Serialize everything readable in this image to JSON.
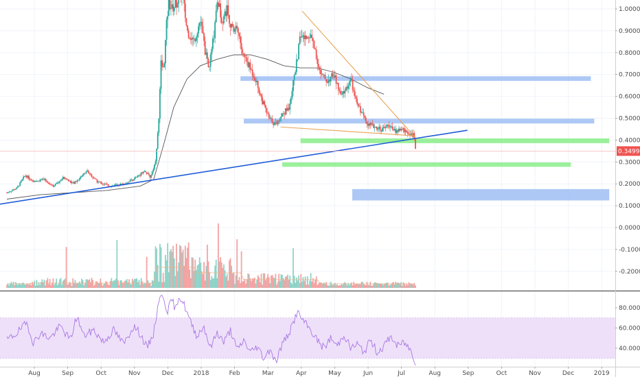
{
  "chart_data": {
    "type": "candlestick",
    "instrument_note": "",
    "price_axis": {
      "ticks": [
        "1.00000",
        "0.90000",
        "0.80000",
        "0.70000",
        "0.60000",
        "0.50000",
        "0.40000",
        "0.30000",
        "0.20000",
        "0.10000",
        "0.00000",
        "-0.10000",
        "-0.20000"
      ],
      "range": [
        -0.27,
        1.04
      ],
      "last_price": "0.34991",
      "last_price_color": "#ef5350"
    },
    "rsi_axis": {
      "ticks": [
        "80.0000",
        "60.0000",
        "40.0000"
      ],
      "range": [
        22,
        97
      ],
      "band": [
        30,
        70
      ],
      "line_color": "#a678e0",
      "band_color": "#efe0fa"
    },
    "time_axis": {
      "labels": [
        {
          "t": 0,
          "text": "Aug"
        },
        {
          "t": 1,
          "text": "Sep"
        },
        {
          "t": 2,
          "text": "Oct"
        },
        {
          "t": 3,
          "text": "Nov"
        },
        {
          "t": 4,
          "text": "Dec"
        },
        {
          "t": 5,
          "text": "2018"
        },
        {
          "t": 6,
          "text": "Feb"
        },
        {
          "t": 7,
          "text": "Mar"
        },
        {
          "t": 8,
          "text": "Apr"
        },
        {
          "t": 9,
          "text": "May"
        },
        {
          "t": 10,
          "text": "Jun"
        },
        {
          "t": 11,
          "text": "Jul"
        },
        {
          "t": 12,
          "text": "Aug"
        },
        {
          "t": 13,
          "text": "Sep"
        },
        {
          "t": 14,
          "text": "Oct"
        },
        {
          "t": 15,
          "text": "Nov"
        },
        {
          "t": 16,
          "text": "Dec"
        },
        {
          "t": 17,
          "text": "2019"
        }
      ]
    },
    "colors": {
      "up": "#26a69a",
      "down": "#ef5350",
      "volume_up": "#8fd3c8",
      "volume_down": "#f4a3a3",
      "ma": "#555555",
      "trend": "#1e5bd7",
      "wedge": "#e8a253",
      "support": "#90ee90",
      "resistance": "#a4c2f4"
    },
    "price_path": [
      [
        0.0,
        0.16
      ],
      [
        0.3,
        0.18
      ],
      [
        0.55,
        0.24
      ],
      [
        0.8,
        0.21
      ],
      [
        1.1,
        0.22
      ],
      [
        1.4,
        0.19
      ],
      [
        1.7,
        0.23
      ],
      [
        2.0,
        0.2
      ],
      [
        2.4,
        0.26
      ],
      [
        2.7,
        0.21
      ],
      [
        3.1,
        0.19
      ],
      [
        3.5,
        0.2
      ],
      [
        3.9,
        0.23
      ],
      [
        4.1,
        0.26
      ],
      [
        4.3,
        0.23
      ],
      [
        4.45,
        0.3
      ],
      [
        4.55,
        0.48
      ],
      [
        4.62,
        0.75
      ],
      [
        4.7,
        0.72
      ],
      [
        4.78,
        0.92
      ],
      [
        4.85,
        1.03
      ],
      [
        4.95,
        1.0
      ],
      [
        5.1,
        1.03
      ],
      [
        5.25,
        1.08
      ],
      [
        5.4,
        0.9
      ],
      [
        5.6,
        0.85
      ],
      [
        5.8,
        0.95
      ],
      [
        5.95,
        0.8
      ],
      [
        6.05,
        0.72
      ],
      [
        6.2,
        0.88
      ],
      [
        6.3,
        1.05
      ],
      [
        6.45,
        0.95
      ],
      [
        6.6,
        1.0
      ],
      [
        6.75,
        0.9
      ],
      [
        6.9,
        0.92
      ],
      [
        7.05,
        0.8
      ],
      [
        7.25,
        0.74
      ],
      [
        7.45,
        0.68
      ],
      [
        7.65,
        0.58
      ],
      [
        7.85,
        0.5
      ],
      [
        8.05,
        0.47
      ],
      [
        8.25,
        0.52
      ],
      [
        8.45,
        0.55
      ],
      [
        8.65,
        0.72
      ],
      [
        8.8,
        0.88
      ],
      [
        8.95,
        0.86
      ],
      [
        9.1,
        0.89
      ],
      [
        9.25,
        0.8
      ],
      [
        9.4,
        0.7
      ],
      [
        9.6,
        0.67
      ],
      [
        9.8,
        0.7
      ],
      [
        10.0,
        0.6
      ],
      [
        10.15,
        0.63
      ],
      [
        10.3,
        0.68
      ],
      [
        10.45,
        0.58
      ],
      [
        10.65,
        0.52
      ],
      [
        10.85,
        0.47
      ],
      [
        11.05,
        0.46
      ],
      [
        11.25,
        0.45
      ],
      [
        11.45,
        0.47
      ],
      [
        11.6,
        0.44
      ],
      [
        11.8,
        0.45
      ],
      [
        11.95,
        0.44
      ],
      [
        12.1,
        0.43
      ],
      [
        12.2,
        0.42
      ],
      [
        12.25,
        0.35
      ]
    ],
    "ma_path": [
      [
        0.0,
        0.13
      ],
      [
        1.0,
        0.15
      ],
      [
        2.0,
        0.16
      ],
      [
        3.0,
        0.17
      ],
      [
        4.0,
        0.19
      ],
      [
        4.4,
        0.22
      ],
      [
        4.7,
        0.38
      ],
      [
        5.0,
        0.55
      ],
      [
        5.4,
        0.68
      ],
      [
        5.8,
        0.74
      ],
      [
        6.3,
        0.77
      ],
      [
        6.8,
        0.79
      ],
      [
        7.3,
        0.79
      ],
      [
        7.8,
        0.77
      ],
      [
        8.3,
        0.74
      ],
      [
        8.8,
        0.73
      ],
      [
        9.3,
        0.73
      ],
      [
        9.8,
        0.71
      ],
      [
        10.3,
        0.68
      ],
      [
        10.8,
        0.64
      ],
      [
        11.3,
        0.61
      ]
    ],
    "rsi_path": [
      [
        0.0,
        48
      ],
      [
        0.3,
        55
      ],
      [
        0.6,
        65
      ],
      [
        0.8,
        45
      ],
      [
        1.0,
        55
      ],
      [
        1.3,
        50
      ],
      [
        1.6,
        62
      ],
      [
        1.9,
        48
      ],
      [
        2.1,
        72
      ],
      [
        2.3,
        52
      ],
      [
        2.6,
        58
      ],
      [
        2.9,
        46
      ],
      [
        3.2,
        58
      ],
      [
        3.5,
        44
      ],
      [
        3.8,
        62
      ],
      [
        4.0,
        54
      ],
      [
        4.2,
        40
      ],
      [
        4.4,
        55
      ],
      [
        4.55,
        88
      ],
      [
        4.7,
        92
      ],
      [
        4.8,
        76
      ],
      [
        4.95,
        88
      ],
      [
        5.05,
        78
      ],
      [
        5.15,
        92
      ],
      [
        5.3,
        84
      ],
      [
        5.5,
        66
      ],
      [
        5.7,
        52
      ],
      [
        5.9,
        62
      ],
      [
        6.1,
        40
      ],
      [
        6.3,
        56
      ],
      [
        6.5,
        46
      ],
      [
        6.7,
        58
      ],
      [
        6.9,
        38
      ],
      [
        7.1,
        48
      ],
      [
        7.3,
        36
      ],
      [
        7.5,
        42
      ],
      [
        7.7,
        30
      ],
      [
        7.9,
        40
      ],
      [
        8.05,
        26
      ],
      [
        8.25,
        44
      ],
      [
        8.5,
        58
      ],
      [
        8.7,
        76
      ],
      [
        8.9,
        66
      ],
      [
        9.1,
        58
      ],
      [
        9.3,
        48
      ],
      [
        9.5,
        40
      ],
      [
        9.7,
        50
      ],
      [
        9.9,
        42
      ],
      [
        10.1,
        54
      ],
      [
        10.3,
        40
      ],
      [
        10.5,
        44
      ],
      [
        10.7,
        36
      ],
      [
        10.9,
        48
      ],
      [
        11.1,
        36
      ],
      [
        11.3,
        42
      ],
      [
        11.5,
        52
      ],
      [
        11.7,
        42
      ],
      [
        11.9,
        46
      ],
      [
        12.1,
        38
      ],
      [
        12.25,
        26
      ]
    ],
    "trendline": [
      [
        -0.3,
        0.105
      ],
      [
        13.8,
        0.445
      ]
    ],
    "wedge_upper": [
      [
        8.85,
        0.99
      ],
      [
        12.25,
        0.41
      ]
    ],
    "wedge_lower": [
      [
        8.2,
        0.46
      ],
      [
        12.2,
        0.42
      ]
    ],
    "zones": [
      {
        "type": "resistance",
        "t0": 7.0,
        "t1": 17.5,
        "p0": 0.671,
        "p1": 0.692
      },
      {
        "type": "resistance",
        "t0": 7.1,
        "t1": 17.6,
        "p0": 0.476,
        "p1": 0.498
      },
      {
        "type": "support",
        "t0": 8.8,
        "t1": 18.05,
        "p0": 0.386,
        "p1": 0.408
      },
      {
        "type": "support",
        "t0": 8.25,
        "t1": 16.9,
        "p0": 0.278,
        "p1": 0.298
      },
      {
        "type": "resistance",
        "t0": 10.35,
        "t1": 18.05,
        "p0": 0.124,
        "p1": 0.176
      }
    ]
  }
}
